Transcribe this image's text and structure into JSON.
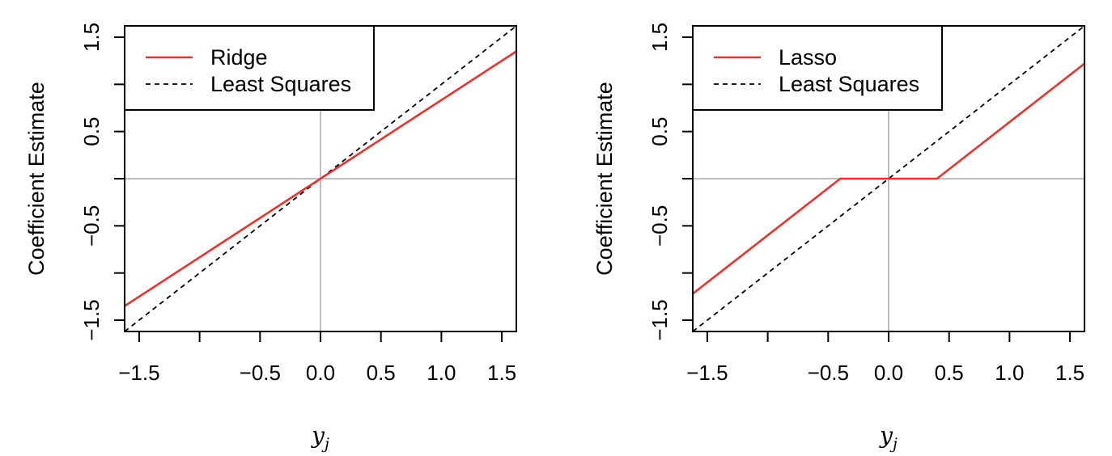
{
  "chart_data": [
    {
      "type": "line",
      "title": "",
      "xlabel": {
        "base": "y",
        "sub": "j"
      },
      "ylabel": "Coefficient Estimate",
      "xlim": [
        -1.62,
        1.62
      ],
      "ylim": [
        -1.62,
        1.62
      ],
      "xticks": [
        -1.5,
        -1.0,
        -0.5,
        0.0,
        0.5,
        1.0,
        1.5
      ],
      "xtick_labels": [
        "−1.5",
        "",
        "−0.5",
        "0.0",
        "0.5",
        "1.0",
        "1.5"
      ],
      "yticks": [
        -1.5,
        -1.0,
        -0.5,
        0.0,
        0.5,
        1.0,
        1.5
      ],
      "ytick_labels": [
        "−1.5",
        "",
        "−0.5",
        "",
        "0.5",
        "",
        "1.5"
      ],
      "reference_lines": {
        "x": 0,
        "y": 0,
        "color": "#bebebe"
      },
      "legend_position": "top-left",
      "series": [
        {
          "name": "Ridge",
          "color": "#e3342f",
          "style": "solid",
          "x": [
            -1.62,
            1.62
          ],
          "y": [
            -1.35,
            1.35
          ]
        },
        {
          "name": "Least Squares",
          "color": "#000000",
          "style": "dashed",
          "x": [
            -1.62,
            1.62
          ],
          "y": [
            -1.62,
            1.62
          ]
        }
      ]
    },
    {
      "type": "line",
      "title": "",
      "xlabel": {
        "base": "y",
        "sub": "j"
      },
      "ylabel": "Coefficient Estimate",
      "xlim": [
        -1.62,
        1.62
      ],
      "ylim": [
        -1.62,
        1.62
      ],
      "xticks": [
        -1.5,
        -1.0,
        -0.5,
        0.0,
        0.5,
        1.0,
        1.5
      ],
      "xtick_labels": [
        "−1.5",
        "",
        "−0.5",
        "0.0",
        "0.5",
        "1.0",
        "1.5"
      ],
      "yticks": [
        -1.5,
        -1.0,
        -0.5,
        0.0,
        0.5,
        1.0,
        1.5
      ],
      "ytick_labels": [
        "−1.5",
        "",
        "−0.5",
        "",
        "0.5",
        "",
        "1.5"
      ],
      "reference_lines": {
        "x": 0,
        "y": 0,
        "color": "#bebebe"
      },
      "legend_position": "top-left",
      "series": [
        {
          "name": "Lasso",
          "color": "#e3342f",
          "style": "solid",
          "x": [
            -1.62,
            -0.4,
            0.4,
            1.62
          ],
          "y": [
            -1.22,
            0.0,
            0.0,
            1.22
          ]
        },
        {
          "name": "Least Squares",
          "color": "#000000",
          "style": "dashed",
          "x": [
            -1.62,
            1.62
          ],
          "y": [
            -1.62,
            1.62
          ]
        }
      ]
    }
  ]
}
